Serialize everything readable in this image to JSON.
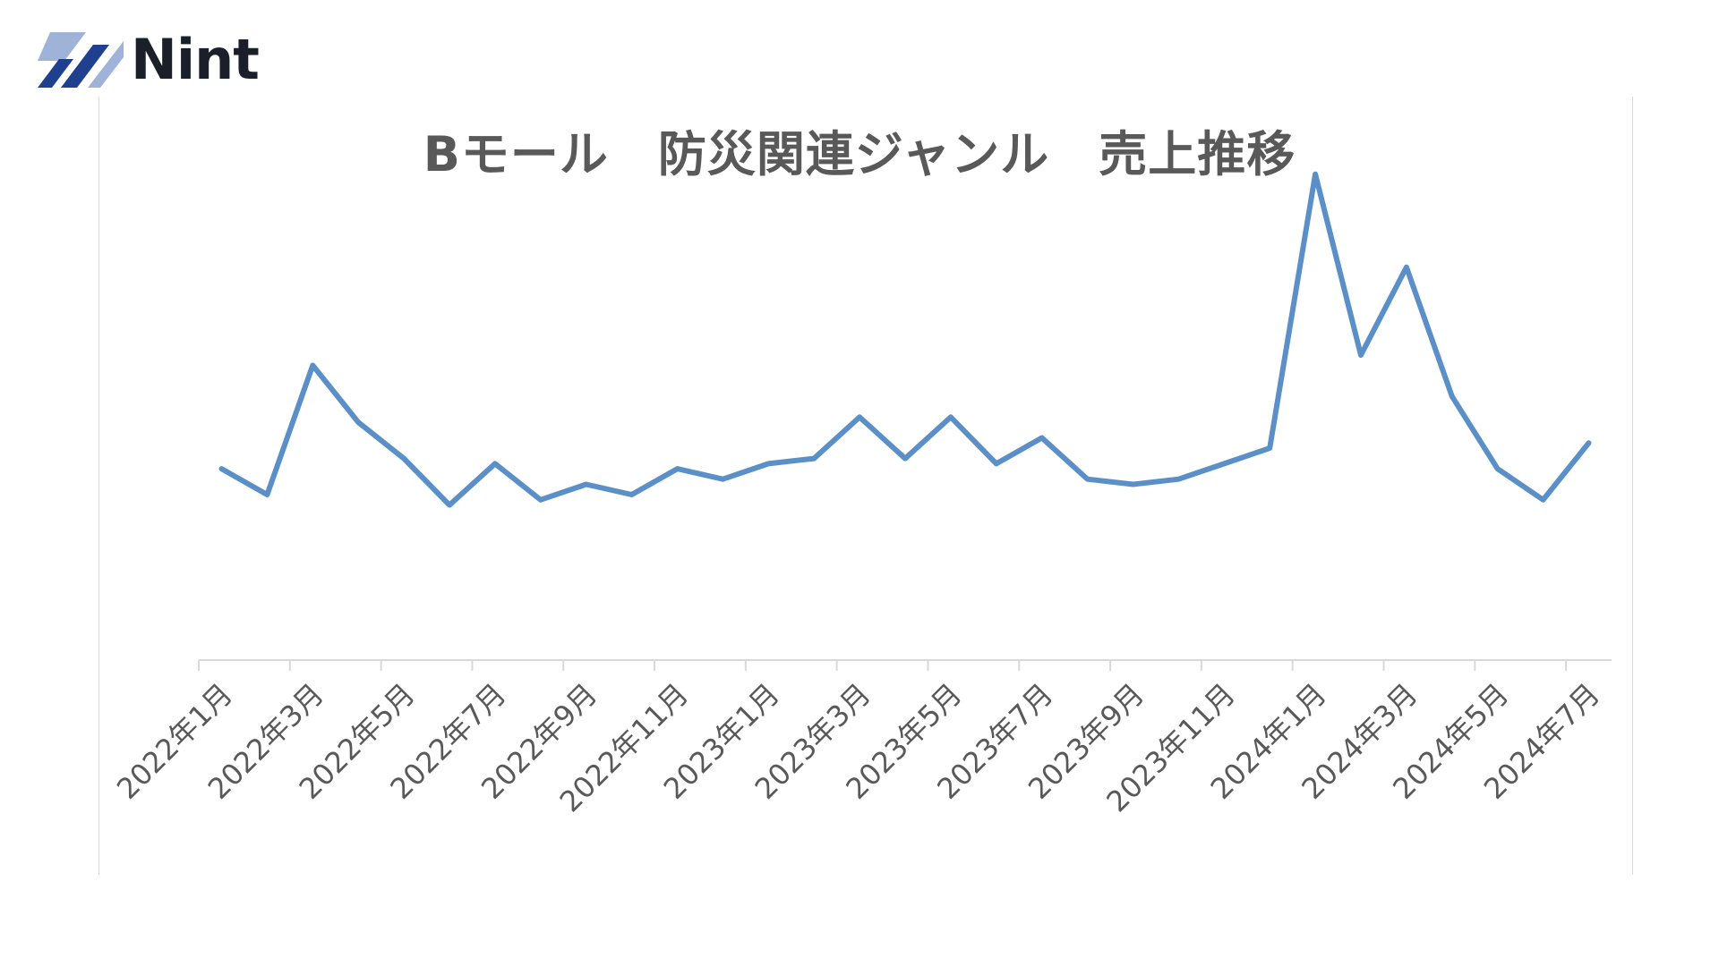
{
  "brand": {
    "name": "Nint",
    "colors": {
      "dark": "#1f3f8f",
      "light": "#9fb3d9",
      "text": "#1b1f2a"
    }
  },
  "chart_data": {
    "type": "line",
    "title": "Bモール　防災関連ジャンル　売上推移",
    "xlabel": "",
    "ylabel": "",
    "y_axis_labels_shown": false,
    "grid": false,
    "legend": "none",
    "line_color": "#5b8fc8",
    "x": [
      "2022年1月",
      "2022年2月",
      "2022年3月",
      "2022年4月",
      "2022年5月",
      "2022年6月",
      "2022年7月",
      "2022年8月",
      "2022年9月",
      "2022年10月",
      "2022年11月",
      "2022年12月",
      "2023年1月",
      "2023年2月",
      "2023年3月",
      "2023年4月",
      "2023年5月",
      "2023年6月",
      "2023年7月",
      "2023年8月",
      "2023年9月",
      "2023年10月",
      "2023年11月",
      "2023年12月",
      "2024年1月",
      "2024年2月",
      "2024年3月",
      "2024年4月",
      "2024年5月",
      "2024年6月",
      "2024年7月"
    ],
    "tick_labels": [
      "2022年1月",
      "2022年3月",
      "2022年5月",
      "2022年7月",
      "2022年9月",
      "2022年11月",
      "2023年1月",
      "2023年3月",
      "2023年5月",
      "2023年7月",
      "2023年9月",
      "2023年11月",
      "2024年1月",
      "2024年3月",
      "2024年5月",
      "2024年7月"
    ],
    "values": [
      37,
      32,
      57,
      46,
      39,
      30,
      38,
      31,
      34,
      32,
      37,
      35,
      38,
      39,
      47,
      39,
      47,
      38,
      43,
      35,
      34,
      35,
      38,
      41,
      94,
      59,
      76,
      51,
      37,
      31,
      42
    ],
    "ylim": [
      0,
      100
    ]
  }
}
